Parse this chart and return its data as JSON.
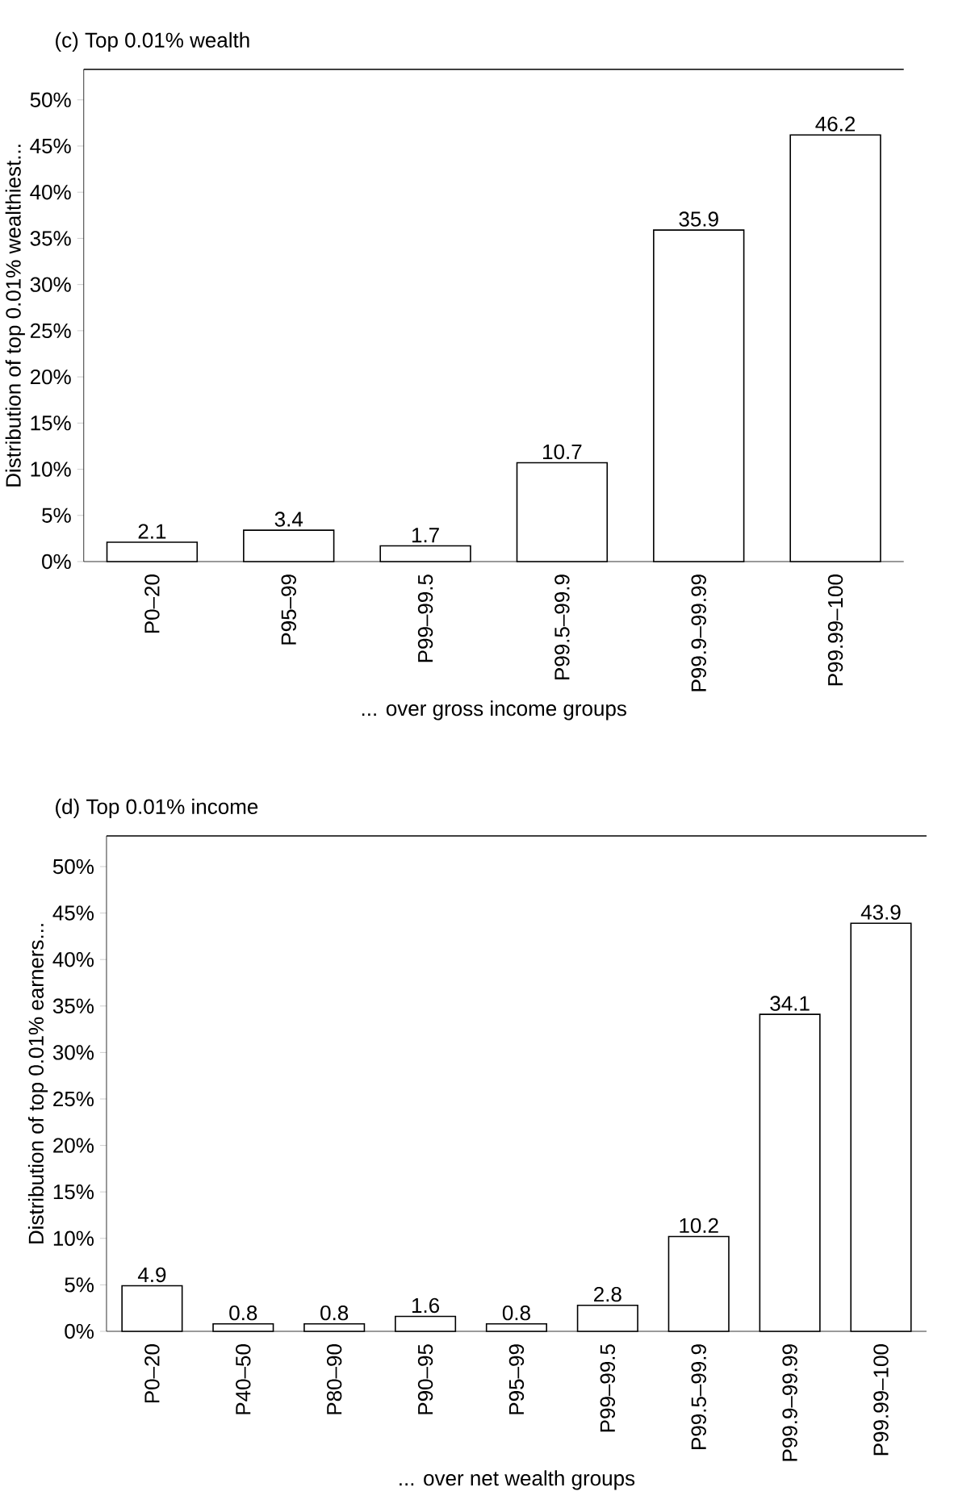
{
  "chart_data": [
    {
      "type": "bar",
      "title": "(c) Top 0.01% wealth",
      "ylabel": "Distribution of top 0.01% wealthiest...",
      "xlabel": "... over gross income groups",
      "categories": [
        "P0–20",
        "P95–99",
        "P99–99.5",
        "P99.5–99.9",
        "P99.9–99.99",
        "P99.99–100"
      ],
      "values": [
        2.1,
        3.4,
        1.7,
        10.7,
        35.9,
        46.2
      ],
      "color": "#ffffff",
      "data_labels": true,
      "ylim": [
        0,
        53.3
      ],
      "yticks": [
        {
          "value": 0,
          "label": "0%"
        },
        {
          "value": 5,
          "label": "5%"
        },
        {
          "value": 10,
          "label": "10%"
        },
        {
          "value": 15,
          "label": "15%"
        },
        {
          "value": 20,
          "label": "20%"
        },
        {
          "value": 25,
          "label": "25%"
        },
        {
          "value": 30,
          "label": "30%"
        },
        {
          "value": 35,
          "label": "35%"
        },
        {
          "value": 40,
          "label": "40%"
        },
        {
          "value": 45,
          "label": "45%"
        },
        {
          "value": 50,
          "label": "50%"
        }
      ]
    },
    {
      "type": "bar",
      "title": "(d) Top 0.01% income",
      "ylabel": "Distribution of top 0.01% earners...",
      "xlabel": "... over net wealth groups",
      "categories": [
        "P0–20",
        "P40–50",
        "P80–90",
        "P90–95",
        "P95–99",
        "P99–99.5",
        "P99.5–99.9",
        "P99.9–99.99",
        "P99.99–100"
      ],
      "values": [
        4.9,
        0.8,
        0.8,
        1.6,
        0.8,
        2.8,
        10.2,
        34.1,
        43.9
      ],
      "color": "#ffffff",
      "data_labels": true,
      "ylim": [
        0,
        53.3
      ],
      "yticks": [
        {
          "value": 0,
          "label": "0%"
        },
        {
          "value": 5,
          "label": "5%"
        },
        {
          "value": 10,
          "label": "10%"
        },
        {
          "value": 15,
          "label": "15%"
        },
        {
          "value": 20,
          "label": "20%"
        },
        {
          "value": 25,
          "label": "25%"
        },
        {
          "value": 30,
          "label": "30%"
        },
        {
          "value": 35,
          "label": "35%"
        },
        {
          "value": 40,
          "label": "40%"
        },
        {
          "value": 45,
          "label": "45%"
        },
        {
          "value": 50,
          "label": "50%"
        }
      ]
    }
  ]
}
